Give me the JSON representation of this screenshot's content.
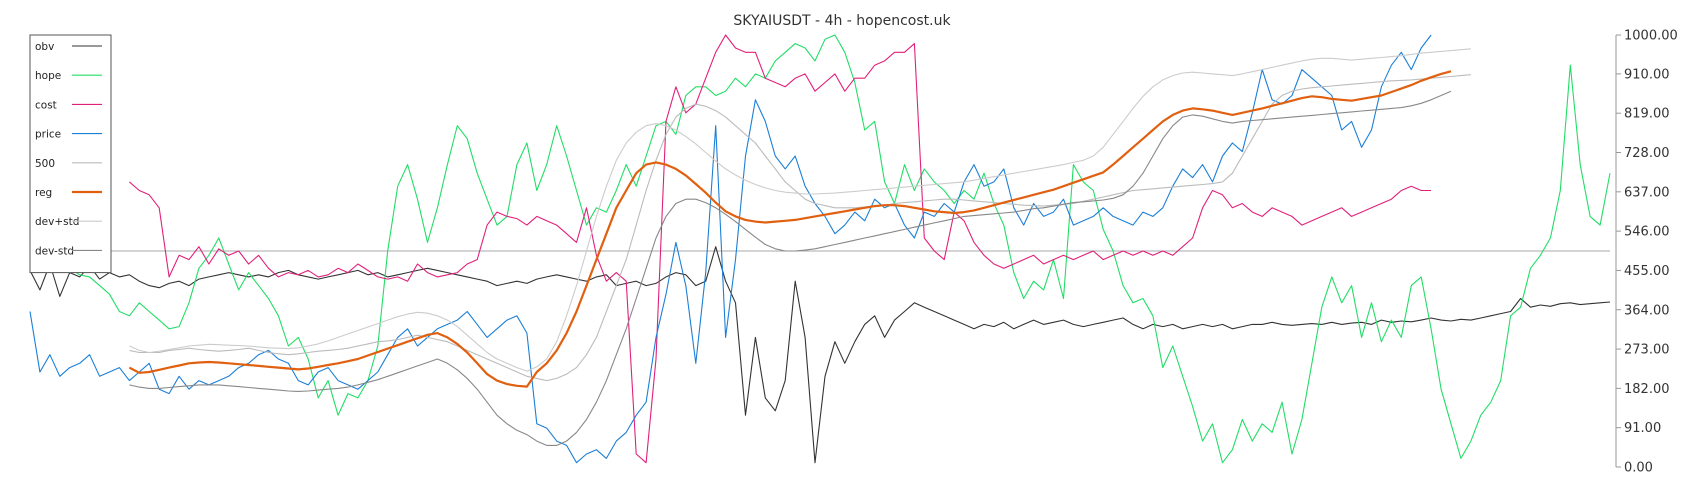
{
  "chart_data": {
    "type": "line",
    "title": "SKYAIUSDT - 4h - hopencost.uk",
    "xlabel": "",
    "ylabel": "",
    "ylim": [
      0,
      1000
    ],
    "y_ticks": [
      "1000.00",
      "910.00",
      "819.00",
      "728.00",
      "637.00",
      "546.00",
      "455.00",
      "364.00",
      "273.00",
      "182.00",
      "91.00",
      "0.00"
    ],
    "grid": false,
    "legend_position": "top-left",
    "reference_line": 500,
    "num_points": 160,
    "series": [
      {
        "name": "obv",
        "color": "#333333",
        "width": 1.1,
        "start": 0,
        "values": [
          455,
          410,
          470,
          395,
          450,
          440,
          465,
          435,
          450,
          440,
          445,
          430,
          420,
          415,
          425,
          430,
          420,
          435,
          440,
          445,
          450,
          445,
          440,
          445,
          440,
          450,
          455,
          445,
          440,
          435,
          440,
          445,
          450,
          455,
          445,
          450,
          440,
          445,
          450,
          455,
          460,
          455,
          450,
          445,
          440,
          435,
          430,
          420,
          425,
          430,
          425,
          435,
          440,
          445,
          440,
          435,
          430,
          440,
          445,
          420,
          425,
          430,
          420,
          425,
          440,
          450,
          445,
          420,
          430,
          510,
          430,
          380,
          120,
          300,
          160,
          130,
          200,
          430,
          300,
          10,
          210,
          290,
          240,
          290,
          330,
          350,
          300,
          340,
          360,
          380,
          370,
          360,
          350,
          340,
          330,
          320,
          330,
          325,
          335,
          320,
          330,
          340,
          330,
          335,
          340,
          330,
          325,
          330,
          335,
          340,
          345,
          330,
          320,
          330,
          325,
          330,
          320,
          325,
          330,
          325,
          330,
          320,
          325,
          330,
          330,
          335,
          330,
          328,
          330,
          332,
          330,
          335,
          330,
          333,
          335,
          330,
          340,
          335,
          338,
          336,
          340,
          345,
          340,
          338,
          342,
          340,
          345,
          350,
          355,
          360,
          390,
          370,
          375,
          372,
          378,
          380,
          376,
          378,
          380,
          382
        ]
      },
      {
        "name": "hope",
        "color": "#22dd66",
        "width": 1.1,
        "start": 0,
        "values": [
          455,
          460,
          450,
          470,
          460,
          445,
          440,
          420,
          400,
          360,
          350,
          380,
          360,
          340,
          320,
          325,
          380,
          460,
          490,
          530,
          470,
          410,
          450,
          420,
          390,
          350,
          280,
          300,
          250,
          160,
          200,
          120,
          170,
          160,
          200,
          280,
          500,
          650,
          700,
          620,
          520,
          600,
          700,
          790,
          760,
          680,
          620,
          560,
          580,
          700,
          750,
          640,
          700,
          790,
          720,
          640,
          560,
          600,
          590,
          640,
          700,
          650,
          720,
          790,
          800,
          770,
          860,
          880,
          880,
          860,
          870,
          900,
          880,
          910,
          900,
          940,
          960,
          980,
          970,
          940,
          990,
          1000,
          960,
          890,
          780,
          800,
          660,
          610,
          700,
          640,
          690,
          660,
          640,
          610,
          640,
          620,
          680,
          610,
          560,
          450,
          390,
          430,
          410,
          480,
          390,
          700,
          660,
          640,
          550,
          500,
          420,
          380,
          390,
          350,
          230,
          280,
          210,
          140,
          60,
          100,
          10,
          40,
          110,
          60,
          100,
          80,
          150,
          30,
          110,
          240,
          370,
          440,
          380,
          420,
          300,
          380,
          290,
          340,
          300,
          420,
          440,
          320,
          180,
          100,
          20,
          60,
          120,
          150,
          200,
          350,
          370,
          460,
          490,
          530,
          640,
          930,
          700,
          580,
          560,
          680
        ]
      },
      {
        "name": "cost",
        "color": "#e0207a",
        "width": 1.1,
        "start": 10,
        "values": [
          660,
          640,
          630,
          600,
          440,
          490,
          480,
          510,
          470,
          505,
          490,
          500,
          470,
          490,
          460,
          440,
          450,
          445,
          455,
          440,
          445,
          460,
          450,
          470,
          455,
          440,
          435,
          440,
          430,
          470,
          450,
          440,
          445,
          450,
          470,
          480,
          560,
          590,
          580,
          575,
          560,
          580,
          570,
          560,
          540,
          520,
          600,
          490,
          430,
          450,
          430,
          30,
          10,
          250,
          800,
          880,
          820,
          840,
          900,
          960,
          1000,
          970,
          960,
          960,
          900,
          890,
          880,
          900,
          910,
          870,
          890,
          910,
          870,
          900,
          900,
          930,
          940,
          960,
          960,
          980,
          530,
          500,
          480,
          590,
          570,
          520,
          490,
          470,
          460,
          470,
          480,
          490,
          470,
          480,
          490,
          480,
          490,
          500,
          480,
          490,
          500,
          490,
          500,
          490,
          500,
          490,
          510,
          530,
          600,
          640,
          630,
          600,
          610,
          590,
          580,
          600,
          590,
          580,
          560,
          570,
          580,
          590,
          600,
          580,
          590,
          600,
          610,
          620,
          640,
          650,
          640,
          640
        ]
      },
      {
        "name": "price",
        "color": "#1c7fd6",
        "width": 1.1,
        "start": 0,
        "values": [
          360,
          220,
          260,
          210,
          230,
          240,
          260,
          210,
          220,
          230,
          200,
          220,
          240,
          180,
          170,
          210,
          180,
          200,
          190,
          200,
          210,
          230,
          240,
          260,
          270,
          250,
          240,
          200,
          190,
          220,
          230,
          200,
          190,
          180,
          200,
          220,
          260,
          300,
          320,
          280,
          300,
          320,
          330,
          340,
          360,
          330,
          300,
          320,
          340,
          350,
          310,
          100,
          90,
          60,
          50,
          10,
          30,
          40,
          20,
          60,
          80,
          120,
          150,
          300,
          400,
          520,
          420,
          240,
          450,
          790,
          300,
          480,
          720,
          850,
          800,
          720,
          690,
          720,
          650,
          610,
          580,
          540,
          560,
          590,
          570,
          620,
          600,
          610,
          560,
          530,
          590,
          580,
          610,
          590,
          660,
          700,
          650,
          660,
          690,
          600,
          560,
          610,
          580,
          590,
          620,
          560,
          570,
          580,
          600,
          580,
          570,
          560,
          590,
          580,
          600,
          650,
          690,
          670,
          700,
          660,
          720,
          750,
          730,
          820,
          920,
          850,
          840,
          860,
          920,
          900,
          880,
          860,
          780,
          800,
          740,
          780,
          880,
          930,
          960,
          920,
          970,
          1000
        ]
      },
      {
        "name": "500",
        "color": "#bbbbbb",
        "width": 1.1,
        "start": 10,
        "values": [
          270,
          265,
          265,
          265,
          270,
          272,
          275,
          272,
          270,
          268,
          270,
          272,
          275,
          270,
          265,
          262,
          260,
          262,
          265,
          268,
          270,
          272,
          275,
          280,
          285,
          290,
          292,
          295,
          300,
          305,
          300,
          295,
          290,
          280,
          270,
          260,
          250,
          240,
          230,
          220,
          210,
          205,
          200,
          205,
          215,
          230,
          260,
          300,
          360,
          420,
          480,
          560,
          640,
          710,
          770,
          810,
          830,
          840,
          835,
          825,
          810,
          790,
          770,
          750,
          720,
          690,
          660,
          640,
          620,
          610,
          605,
          600,
          600,
          600,
          602,
          604,
          606,
          610,
          612,
          614,
          616,
          618,
          620,
          620,
          618,
          616,
          614,
          612,
          610,
          608,
          606,
          605,
          604,
          606,
          608,
          610,
          615,
          620,
          625,
          630,
          635,
          640,
          642,
          644,
          646,
          648,
          650,
          652,
          654,
          656,
          660,
          680,
          720,
          760,
          800,
          840,
          860,
          870,
          875,
          878,
          880,
          882,
          884,
          886,
          888,
          890,
          892,
          894,
          895,
          896,
          898,
          900,
          902,
          904,
          906,
          908
        ]
      },
      {
        "name": "reg",
        "color": "#e06010",
        "width": 2.2,
        "start": 10,
        "values": [
          230,
          218,
          220,
          225,
          230,
          235,
          240,
          242,
          243,
          242,
          240,
          238,
          236,
          234,
          232,
          230,
          228,
          226,
          228,
          232,
          236,
          240,
          245,
          250,
          258,
          266,
          274,
          282,
          290,
          298,
          306,
          310,
          300,
          285,
          265,
          240,
          215,
          200,
          192,
          188,
          186,
          220,
          240,
          270,
          310,
          360,
          420,
          480,
          540,
          600,
          640,
          680,
          700,
          705,
          700,
          690,
          675,
          655,
          635,
          612,
          592,
          580,
          572,
          568,
          566,
          568,
          570,
          572,
          576,
          580,
          584,
          588,
          592,
          596,
          600,
          604,
          606,
          606,
          604,
          600,
          596,
          592,
          590,
          588,
          590,
          594,
          600,
          606,
          612,
          618,
          624,
          630,
          636,
          642,
          650,
          658,
          666,
          674,
          682,
          700,
          720,
          740,
          760,
          780,
          800,
          815,
          825,
          830,
          828,
          825,
          820,
          815,
          820,
          825,
          830,
          836,
          842,
          848,
          854,
          858,
          856,
          852,
          850,
          848,
          852,
          856,
          860,
          868,
          876,
          884,
          894,
          902,
          910,
          916
        ]
      },
      {
        "name": "dev+std",
        "color": "#cccccc",
        "width": 1.1,
        "start": 10,
        "values": [
          280,
          270,
          265,
          268,
          272,
          276,
          280,
          282,
          284,
          283,
          282,
          281,
          280,
          278,
          276,
          275,
          274,
          276,
          280,
          285,
          292,
          300,
          308,
          316,
          324,
          332,
          340,
          348,
          354,
          358,
          356,
          350,
          340,
          325,
          305,
          285,
          265,
          250,
          240,
          230,
          222,
          232,
          250,
          290,
          350,
          420,
          500,
          580,
          650,
          710,
          750,
          775,
          790,
          795,
          790,
          780,
          765,
          748,
          728,
          708,
          690,
          676,
          664,
          654,
          646,
          640,
          636,
          634,
          632,
          632,
          633,
          634,
          636,
          638,
          640,
          642,
          644,
          646,
          648,
          650,
          652,
          654,
          656,
          658,
          660,
          664,
          668,
          672,
          676,
          680,
          684,
          688,
          692,
          696,
          700,
          705,
          710,
          720,
          740,
          770,
          800,
          830,
          858,
          880,
          896,
          906,
          912,
          914,
          912,
          910,
          908,
          906,
          910,
          915,
          920,
          925,
          930,
          935,
          940,
          944,
          946,
          946,
          944,
          942,
          944,
          946,
          948,
          950,
          952,
          955,
          958,
          960,
          962,
          964,
          966,
          968
        ]
      },
      {
        "name": "dev-std",
        "color": "#888888",
        "width": 1.1,
        "start": 10,
        "values": [
          190,
          185,
          182,
          182,
          184,
          186,
          188,
          190,
          190,
          190,
          188,
          186,
          184,
          182,
          180,
          178,
          176,
          175,
          176,
          178,
          180,
          182,
          185,
          190,
          196,
          202,
          210,
          218,
          226,
          234,
          242,
          250,
          240,
          225,
          205,
          180,
          150,
          120,
          100,
          85,
          75,
          60,
          50,
          50,
          60,
          80,
          110,
          150,
          200,
          260,
          320,
          390,
          460,
          530,
          580,
          610,
          620,
          620,
          612,
          600,
          585,
          568,
          550,
          532,
          515,
          505,
          500,
          500,
          502,
          505,
          510,
          515,
          520,
          525,
          530,
          535,
          540,
          545,
          550,
          555,
          560,
          565,
          570,
          575,
          580,
          582,
          584,
          586,
          588,
          590,
          594,
          598,
          600,
          604,
          608,
          612,
          614,
          616,
          618,
          622,
          630,
          650,
          680,
          720,
          760,
          790,
          810,
          815,
          812,
          806,
          800,
          796,
          800,
          802,
          804,
          806,
          808,
          810,
          812,
          814,
          816,
          818,
          820,
          822,
          824,
          826,
          828,
          830,
          832,
          836,
          842,
          850,
          860,
          870
        ]
      }
    ]
  }
}
